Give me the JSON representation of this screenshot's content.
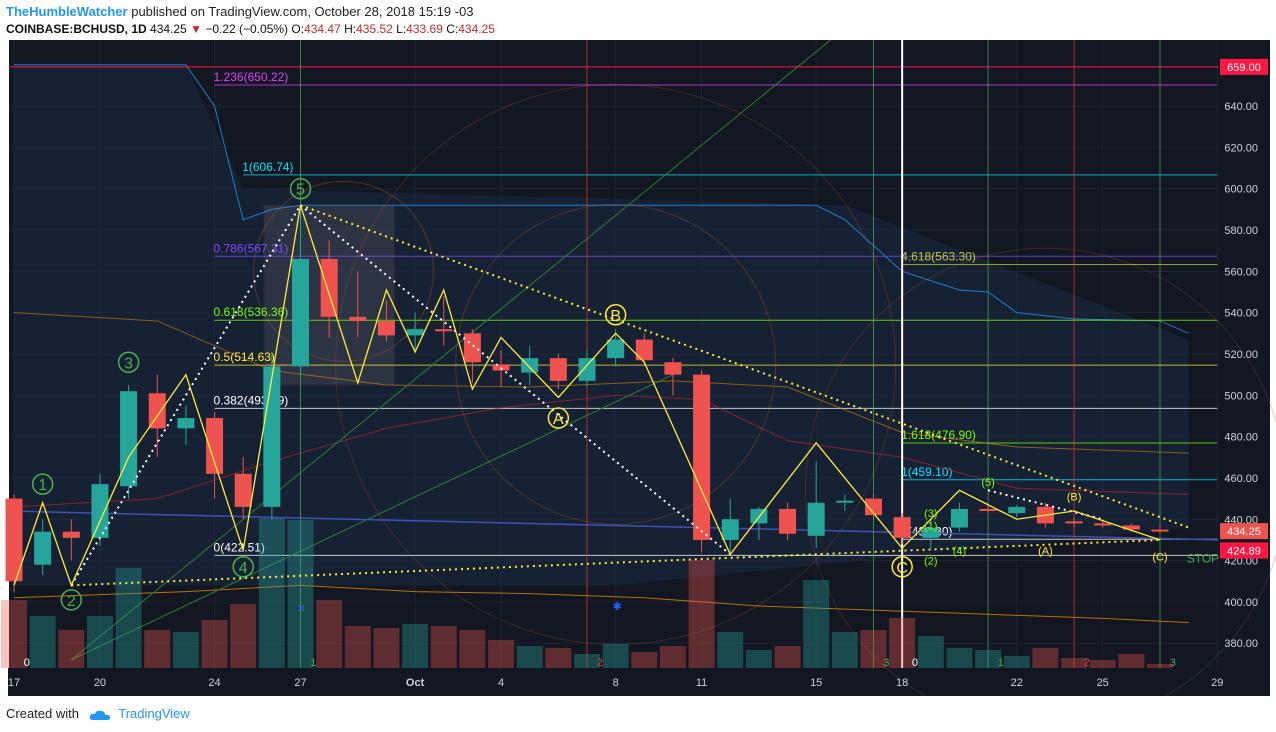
{
  "header": {
    "author": "TheHumbleWatcher",
    "published": "published on TradingView.com, October 28, 2018 15:19 -03",
    "symbol": "COINBASE:BCHUSD, 1D",
    "last": "434.25",
    "change": "−0.22 (−0.05%)",
    "o_label": "O:",
    "o": "434.47",
    "h_label": "H:",
    "h": "435.52",
    "l_label": "L:",
    "l": "433.69",
    "c_label": "C:",
    "c": "434.25"
  },
  "footer": {
    "created": "Created with",
    "brand": "TradingView"
  },
  "colors": {
    "bg": "#131722",
    "up": "#26a69a",
    "down": "#ef5350",
    "wave": "#ffeb3b",
    "fib_white": "#ffffff"
  },
  "chart_data": {
    "type": "candlestick",
    "ylim": [
      368,
      672
    ],
    "y_ticks": [
      380,
      400,
      420,
      440,
      460,
      480,
      500,
      520,
      540,
      560,
      580,
      600,
      620,
      640
    ],
    "x_ticks": [
      {
        "i": 0,
        "label": "17"
      },
      {
        "i": 3,
        "label": "20"
      },
      {
        "i": 7,
        "label": "24"
      },
      {
        "i": 10,
        "label": "27"
      },
      {
        "i": 14,
        "label": "Oct"
      },
      {
        "i": 17,
        "label": "4"
      },
      {
        "i": 21,
        "label": "8"
      },
      {
        "i": 24,
        "label": "11"
      },
      {
        "i": 28,
        "label": "15"
      },
      {
        "i": 31,
        "label": "18"
      },
      {
        "i": 35,
        "label": "22"
      },
      {
        "i": 38,
        "label": "25"
      },
      {
        "i": 42,
        "label": "29"
      }
    ],
    "price_labels": [
      {
        "value": 659.0,
        "text": "659.00",
        "color": "#ff1744"
      },
      {
        "value": 434.25,
        "text": "434.25",
        "color": "#ef5350"
      },
      {
        "value": 424.89,
        "text": "424.89",
        "color": "#ff1744"
      }
    ],
    "candles": [
      {
        "i": 0,
        "o": 450,
        "h": 452,
        "l": 405,
        "c": 410
      },
      {
        "i": 1,
        "o": 418,
        "h": 440,
        "l": 413,
        "c": 434
      },
      {
        "i": 2,
        "o": 434,
        "h": 440,
        "l": 420,
        "c": 431
      },
      {
        "i": 3,
        "o": 431,
        "h": 462,
        "l": 427,
        "c": 457
      },
      {
        "i": 4,
        "o": 456,
        "h": 505,
        "l": 450,
        "c": 502
      },
      {
        "i": 5,
        "o": 501,
        "h": 510,
        "l": 470,
        "c": 484
      },
      {
        "i": 6,
        "o": 484,
        "h": 495,
        "l": 476,
        "c": 489
      },
      {
        "i": 7,
        "o": 489,
        "h": 492,
        "l": 450,
        "c": 462
      },
      {
        "i": 8,
        "o": 462,
        "h": 470,
        "l": 440,
        "c": 446
      },
      {
        "i": 9,
        "o": 446,
        "h": 520,
        "l": 440,
        "c": 514
      },
      {
        "i": 10,
        "o": 514,
        "h": 591,
        "l": 510,
        "c": 566
      },
      {
        "i": 11,
        "o": 566,
        "h": 575,
        "l": 528,
        "c": 538
      },
      {
        "i": 12,
        "o": 538,
        "h": 560,
        "l": 528,
        "c": 536
      },
      {
        "i": 13,
        "o": 536,
        "h": 546,
        "l": 526,
        "c": 529
      },
      {
        "i": 14,
        "o": 529,
        "h": 540,
        "l": 522,
        "c": 532
      },
      {
        "i": 15,
        "o": 532,
        "h": 548,
        "l": 524,
        "c": 531
      },
      {
        "i": 16,
        "o": 530,
        "h": 532,
        "l": 506,
        "c": 516
      },
      {
        "i": 17,
        "o": 515,
        "h": 522,
        "l": 504,
        "c": 512
      },
      {
        "i": 18,
        "o": 511,
        "h": 524,
        "l": 505,
        "c": 518
      },
      {
        "i": 19,
        "o": 518,
        "h": 520,
        "l": 503,
        "c": 507
      },
      {
        "i": 20,
        "o": 507,
        "h": 522,
        "l": 504,
        "c": 518
      },
      {
        "i": 21,
        "o": 518,
        "h": 532,
        "l": 514,
        "c": 527
      },
      {
        "i": 22,
        "o": 527,
        "h": 530,
        "l": 514,
        "c": 517
      },
      {
        "i": 23,
        "o": 516,
        "h": 518,
        "l": 500,
        "c": 510
      },
      {
        "i": 24,
        "o": 510,
        "h": 512,
        "l": 424,
        "c": 430
      },
      {
        "i": 25,
        "o": 430,
        "h": 450,
        "l": 424,
        "c": 440
      },
      {
        "i": 26,
        "o": 438,
        "h": 446,
        "l": 430,
        "c": 445
      },
      {
        "i": 27,
        "o": 445,
        "h": 448,
        "l": 430,
        "c": 433
      },
      {
        "i": 28,
        "o": 432,
        "h": 468,
        "l": 426,
        "c": 448
      },
      {
        "i": 29,
        "o": 448,
        "h": 452,
        "l": 444,
        "c": 449
      },
      {
        "i": 30,
        "o": 450,
        "h": 452,
        "l": 440,
        "c": 442
      },
      {
        "i": 31,
        "o": 441,
        "h": 443,
        "l": 428,
        "c": 431
      },
      {
        "i": 32,
        "o": 431,
        "h": 440,
        "l": 426,
        "c": 436
      },
      {
        "i": 33,
        "o": 436,
        "h": 448,
        "l": 434,
        "c": 445
      },
      {
        "i": 34,
        "o": 445,
        "h": 447,
        "l": 443,
        "c": 444
      },
      {
        "i": 35,
        "o": 443,
        "h": 447,
        "l": 441,
        "c": 446
      },
      {
        "i": 36,
        "o": 446,
        "h": 448,
        "l": 436,
        "c": 438
      },
      {
        "i": 37,
        "o": 439,
        "h": 441,
        "l": 436,
        "c": 438
      },
      {
        "i": 38,
        "o": 438,
        "h": 440,
        "l": 436,
        "c": 437
      },
      {
        "i": 39,
        "o": 437,
        "h": 438,
        "l": 434,
        "c": 435
      },
      {
        "i": 40,
        "o": 435,
        "h": 437,
        "l": 433,
        "c": 434.25
      }
    ],
    "volume": [
      {
        "i": 0,
        "h": 68,
        "dir": "down"
      },
      {
        "i": 1,
        "h": 52,
        "dir": "up"
      },
      {
        "i": 2,
        "h": 38,
        "dir": "down"
      },
      {
        "i": 3,
        "h": 52,
        "dir": "up"
      },
      {
        "i": 4,
        "h": 100,
        "dir": "up"
      },
      {
        "i": 5,
        "h": 38,
        "dir": "down"
      },
      {
        "i": 6,
        "h": 36,
        "dir": "up"
      },
      {
        "i": 7,
        "h": 48,
        "dir": "down"
      },
      {
        "i": 8,
        "h": 64,
        "dir": "down"
      },
      {
        "i": 9,
        "h": 150,
        "dir": "up"
      },
      {
        "i": 10,
        "h": 148,
        "dir": "up"
      },
      {
        "i": 11,
        "h": 68,
        "dir": "down"
      },
      {
        "i": 12,
        "h": 42,
        "dir": "down"
      },
      {
        "i": 13,
        "h": 40,
        "dir": "down"
      },
      {
        "i": 14,
        "h": 44,
        "dir": "up"
      },
      {
        "i": 15,
        "h": 42,
        "dir": "down"
      },
      {
        "i": 16,
        "h": 38,
        "dir": "down"
      },
      {
        "i": 17,
        "h": 28,
        "dir": "down"
      },
      {
        "i": 18,
        "h": 22,
        "dir": "up"
      },
      {
        "i": 19,
        "h": 20,
        "dir": "down"
      },
      {
        "i": 20,
        "h": 14,
        "dir": "up"
      },
      {
        "i": 21,
        "h": 24,
        "dir": "up"
      },
      {
        "i": 22,
        "h": 16,
        "dir": "down"
      },
      {
        "i": 23,
        "h": 22,
        "dir": "down"
      },
      {
        "i": 24,
        "h": 108,
        "dir": "down"
      },
      {
        "i": 25,
        "h": 36,
        "dir": "up"
      },
      {
        "i": 26,
        "h": 18,
        "dir": "up"
      },
      {
        "i": 27,
        "h": 22,
        "dir": "down"
      },
      {
        "i": 28,
        "h": 88,
        "dir": "up"
      },
      {
        "i": 29,
        "h": 36,
        "dir": "up"
      },
      {
        "i": 30,
        "h": 38,
        "dir": "down"
      },
      {
        "i": 31,
        "h": 50,
        "dir": "down"
      },
      {
        "i": 32,
        "h": 32,
        "dir": "up"
      },
      {
        "i": 33,
        "h": 20,
        "dir": "up"
      },
      {
        "i": 34,
        "h": 18,
        "dir": "up"
      },
      {
        "i": 35,
        "h": 12,
        "dir": "up"
      },
      {
        "i": 36,
        "h": 20,
        "dir": "down"
      },
      {
        "i": 37,
        "h": 10,
        "dir": "down"
      },
      {
        "i": 38,
        "h": 8,
        "dir": "down"
      },
      {
        "i": 39,
        "h": 14,
        "dir": "down"
      },
      {
        "i": 40,
        "h": 4,
        "dir": "down"
      }
    ],
    "fib_levels": [
      {
        "value": 650.22,
        "label": "1.236(650.22)",
        "color": "#e040fb",
        "i1": 7,
        "i2": 42
      },
      {
        "value": 606.74,
        "label": "1(606.74)",
        "color": "#00e5ff",
        "i1": 8,
        "i2": 42
      },
      {
        "value": 567.3,
        "label": "0.786(567.31)",
        "color": "#7c4dff",
        "i1": 7,
        "i2": 42
      },
      {
        "value": 536.36,
        "label": "0.618(536.36)",
        "color": "#76ff03",
        "i1": 7,
        "i2": 42
      },
      {
        "value": 514.63,
        "label": "0.5(514.63)",
        "color": "#ffeb3b",
        "i1": 7,
        "i2": 42
      },
      {
        "value": 493.69,
        "label": "0.382(493.69)",
        "color": "#ffffff",
        "i1": 7,
        "i2": 42
      },
      {
        "value": 422.51,
        "label": "0(422.51)",
        "color": "#ffffff",
        "i1": 7,
        "i2": 42
      },
      {
        "value": 563.3,
        "label": "4.618(563.30)",
        "color": "#c0ca33",
        "i1": 31,
        "i2": 42
      },
      {
        "value": 476.9,
        "label": "1.618(476.90)",
        "color": "#76ff03",
        "i1": 31,
        "i2": 42
      },
      {
        "value": 459.1,
        "label": "1(459.10)",
        "color": "#00e5ff",
        "i1": 31,
        "i2": 42
      },
      {
        "value": 430.3,
        "label": "0(430.30)",
        "color": "#ffffff",
        "i1": 31,
        "i2": 42
      }
    ],
    "wave_points": [
      {
        "i": 0,
        "v": 408
      },
      {
        "i": 1,
        "v": 448
      },
      {
        "i": 2,
        "v": 408
      },
      {
        "i": 4,
        "v": 470
      },
      {
        "i": 6,
        "v": 510
      },
      {
        "i": 8,
        "v": 425
      },
      {
        "i": 10,
        "v": 592
      },
      {
        "i": 12,
        "v": 506
      },
      {
        "i": 13,
        "v": 551
      },
      {
        "i": 14,
        "v": 521
      },
      {
        "i": 15,
        "v": 551
      },
      {
        "i": 16,
        "v": 503
      },
      {
        "i": 17,
        "v": 528
      },
      {
        "i": 19,
        "v": 499
      },
      {
        "i": 21,
        "v": 530
      },
      {
        "i": 22,
        "v": 516
      },
      {
        "i": 25,
        "v": 423
      },
      {
        "i": 28,
        "v": 477
      },
      {
        "i": 31,
        "v": 426
      },
      {
        "i": 33,
        "v": 454
      },
      {
        "i": 35,
        "v": 440
      },
      {
        "i": 37,
        "v": 444
      },
      {
        "i": 40,
        "v": 430
      }
    ],
    "wave_labels": [
      {
        "i": 1,
        "v": 457,
        "text": "1",
        "color": "#4caf50"
      },
      {
        "i": 2,
        "v": 401,
        "text": "2",
        "color": "#4caf50"
      },
      {
        "i": 4,
        "v": 516,
        "text": "3",
        "color": "#4caf50"
      },
      {
        "i": 8,
        "v": 417,
        "text": "4",
        "color": "#4caf50"
      },
      {
        "i": 10,
        "v": 600,
        "text": "5",
        "color": "#4caf50"
      },
      {
        "i": 19,
        "v": 489,
        "text": "A",
        "color": "#ffeb3b"
      },
      {
        "i": 21,
        "v": 539,
        "text": "B",
        "color": "#ffeb3b"
      },
      {
        "i": 31,
        "v": 417,
        "text": "C",
        "color": "#ffeb3b"
      }
    ],
    "small_labels": [
      {
        "i": 32,
        "v": 443,
        "text": "(3)",
        "color": "#76ff03"
      },
      {
        "i": 32,
        "v": 437,
        "text": "(1)",
        "color": "#76ff03"
      },
      {
        "i": 32,
        "v": 420,
        "text": "(2)",
        "color": "#76ff03"
      },
      {
        "i": 33,
        "v": 425,
        "text": "(4)",
        "color": "#76ff03"
      },
      {
        "i": 34,
        "v": 458,
        "text": "(5)",
        "color": "#76ff03"
      },
      {
        "i": 37,
        "v": 451,
        "text": "(B)",
        "color": "#ffeb3b"
      },
      {
        "i": 36,
        "v": 425,
        "text": "(A)",
        "color": "#ffeb3b"
      },
      {
        "i": 40,
        "v": 422,
        "text": "(C)",
        "color": "#ffeb3b"
      }
    ],
    "stop_label": {
      "text": "STOP",
      "i": 41.5,
      "v": 421
    },
    "bottom_numbers": [
      {
        "i": 0.2,
        "text": "0",
        "color": "#ffffff"
      },
      {
        "i": 10.2,
        "text": "1",
        "color": "#4caf50"
      },
      {
        "i": 20.2,
        "text": "2",
        "color": "#e53935"
      },
      {
        "i": 30.2,
        "text": "3",
        "color": "#4caf50"
      },
      {
        "i": 31.2,
        "text": "0",
        "color": "#ffffff"
      },
      {
        "i": 34.2,
        "text": "1",
        "color": "#4caf50"
      },
      {
        "i": 37.2,
        "text": "2",
        "color": "#e53935"
      },
      {
        "i": 40.2,
        "text": "3",
        "color": "#4caf50"
      }
    ]
  }
}
